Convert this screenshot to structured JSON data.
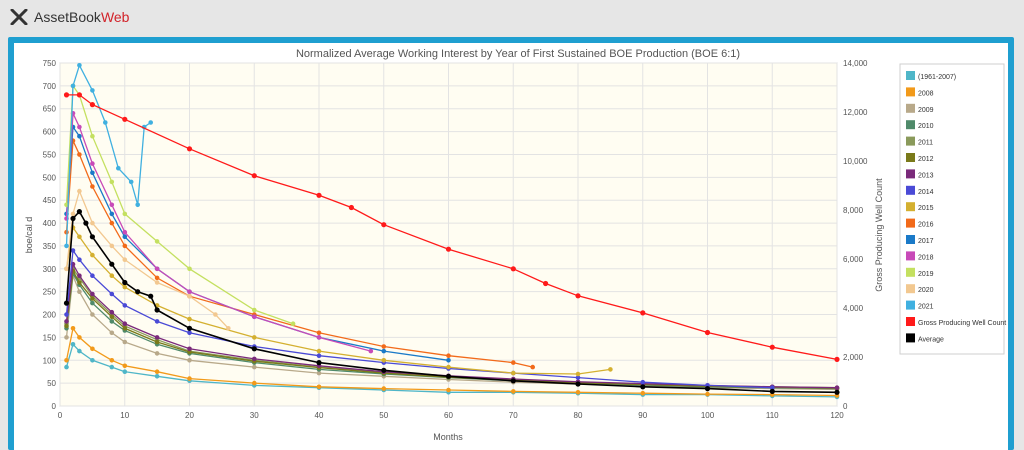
{
  "app": {
    "name_part1": "AssetBook",
    "name_part2": "Web",
    "accent_color": "#d2232a",
    "frame_color": "#1f9fd0",
    "logo_icon": "x-logo-icon"
  },
  "chart_data": {
    "type": "line",
    "title": "Normalized Average Working Interest by Year of First Sustained BOE Production (BOE 6:1)",
    "xlabel": "Months",
    "ylabel": "boe/cal d",
    "y2label": "Gross Producing Well Count",
    "xlim": [
      0,
      120
    ],
    "ylim": [
      0,
      750
    ],
    "y2lim": [
      0,
      14000
    ],
    "xticks": [
      0,
      10,
      20,
      30,
      40,
      50,
      60,
      70,
      80,
      90,
      100,
      110,
      120
    ],
    "yticks": [
      0,
      50,
      100,
      150,
      200,
      250,
      300,
      350,
      400,
      450,
      500,
      550,
      600,
      650,
      700,
      750
    ],
    "y2ticks": [
      "0",
      "2,000",
      "4,000",
      "6,000",
      "8,000",
      "10,000",
      "12,000",
      "14,000"
    ],
    "grid": true,
    "legend_position": "right",
    "series": [
      {
        "name": "(1961-2007)",
        "color": "#4fb6c8",
        "x": [
          1,
          2,
          3,
          5,
          8,
          10,
          15,
          20,
          30,
          40,
          50,
          60,
          70,
          80,
          90,
          100,
          110,
          120
        ],
        "values": [
          85,
          135,
          120,
          100,
          85,
          75,
          65,
          55,
          45,
          40,
          35,
          30,
          30,
          28,
          25,
          25,
          22,
          20
        ]
      },
      {
        "name": "2008",
        "color": "#f29a1a",
        "x": [
          1,
          2,
          3,
          5,
          8,
          10,
          15,
          20,
          30,
          40,
          50,
          60,
          70,
          80,
          90,
          100,
          110,
          120
        ],
        "values": [
          100,
          170,
          150,
          125,
          100,
          88,
          75,
          60,
          50,
          42,
          38,
          35,
          32,
          30,
          28,
          26,
          25,
          23
        ]
      },
      {
        "name": "2009",
        "color": "#b8a98a",
        "x": [
          1,
          2,
          3,
          5,
          8,
          10,
          15,
          20,
          30,
          40,
          50,
          60,
          70,
          80,
          90,
          100,
          110,
          120
        ],
        "values": [
          150,
          285,
          250,
          200,
          160,
          140,
          115,
          100,
          85,
          72,
          65,
          58,
          52,
          48,
          44,
          40,
          38,
          36
        ]
      },
      {
        "name": "2010",
        "color": "#4f8a6a",
        "x": [
          1,
          2,
          3,
          5,
          8,
          10,
          15,
          20,
          30,
          40,
          50,
          60,
          70,
          80,
          90,
          100,
          110,
          120
        ],
        "values": [
          170,
          290,
          265,
          225,
          185,
          165,
          135,
          115,
          95,
          80,
          70,
          62,
          55,
          50,
          46,
          42,
          40,
          38
        ]
      },
      {
        "name": "2011",
        "color": "#8a9a5b",
        "x": [
          1,
          2,
          3,
          5,
          8,
          10,
          15,
          20,
          30,
          40,
          50,
          60,
          70,
          80,
          90,
          100,
          110,
          120
        ],
        "values": [
          180,
          300,
          280,
          240,
          200,
          175,
          145,
          120,
          100,
          85,
          73,
          65,
          58,
          52,
          48,
          44,
          42,
          40
        ]
      },
      {
        "name": "2012",
        "color": "#7a7a1a",
        "x": [
          1,
          2,
          3,
          5,
          8,
          10,
          15,
          20,
          30,
          40,
          50,
          60,
          70,
          80,
          90,
          100,
          110,
          120
        ],
        "values": [
          175,
          295,
          270,
          235,
          195,
          170,
          140,
          118,
          98,
          84,
          72,
          63,
          56,
          51,
          47,
          43,
          41,
          39
        ]
      },
      {
        "name": "2013",
        "color": "#7a2a7a",
        "x": [
          1,
          2,
          3,
          5,
          8,
          10,
          15,
          20,
          30,
          40,
          50,
          60,
          70,
          80,
          90,
          100,
          110,
          120
        ],
        "values": [
          185,
          310,
          285,
          245,
          205,
          180,
          150,
          125,
          103,
          88,
          75,
          66,
          59,
          53,
          49,
          45,
          42,
          40
        ]
      },
      {
        "name": "2014",
        "color": "#4a4ad6",
        "x": [
          1,
          2,
          3,
          5,
          8,
          10,
          15,
          20,
          30,
          40,
          50,
          60,
          70,
          80,
          90,
          100,
          110
        ],
        "values": [
          200,
          340,
          320,
          285,
          245,
          220,
          185,
          160,
          130,
          110,
          95,
          82,
          72,
          62,
          52,
          45,
          40
        ]
      },
      {
        "name": "2015",
        "color": "#d4b030",
        "x": [
          1,
          2,
          3,
          5,
          8,
          10,
          15,
          20,
          30,
          40,
          50,
          60,
          70,
          80,
          85
        ],
        "values": [
          300,
          390,
          370,
          330,
          285,
          260,
          220,
          190,
          150,
          120,
          100,
          85,
          72,
          70,
          80
        ]
      },
      {
        "name": "2016",
        "color": "#f26a1a",
        "x": [
          1,
          2,
          3,
          5,
          8,
          10,
          15,
          20,
          30,
          40,
          50,
          60,
          70,
          73
        ],
        "values": [
          380,
          580,
          550,
          480,
          400,
          350,
          280,
          240,
          200,
          160,
          130,
          110,
          95,
          85
        ]
      },
      {
        "name": "2017",
        "color": "#1a7ac8",
        "x": [
          1,
          2,
          3,
          5,
          8,
          10,
          15,
          20,
          30,
          40,
          50,
          60
        ],
        "values": [
          420,
          610,
          590,
          510,
          420,
          370,
          300,
          250,
          195,
          150,
          120,
          100
        ]
      },
      {
        "name": "2018",
        "color": "#c84ab8",
        "x": [
          1,
          2,
          3,
          5,
          8,
          10,
          15,
          20,
          30,
          40,
          48
        ],
        "values": [
          410,
          640,
          610,
          530,
          440,
          380,
          300,
          250,
          195,
          150,
          120
        ]
      },
      {
        "name": "2019",
        "color": "#c4e060",
        "x": [
          1,
          2,
          3,
          5,
          8,
          10,
          15,
          20,
          30,
          36
        ],
        "values": [
          440,
          700,
          680,
          590,
          490,
          420,
          360,
          300,
          210,
          180
        ]
      },
      {
        "name": "2020",
        "color": "#f2c890",
        "x": [
          1,
          2,
          3,
          5,
          8,
          10,
          15,
          20,
          24,
          26
        ],
        "values": [
          300,
          420,
          470,
          400,
          350,
          320,
          270,
          240,
          200,
          170
        ]
      },
      {
        "name": "2021",
        "color": "#40b0e0",
        "x": [
          1,
          2,
          3,
          5,
          7,
          9,
          11,
          12,
          13,
          14
        ],
        "values": [
          350,
          700,
          745,
          690,
          620,
          520,
          490,
          440,
          610,
          620
        ]
      },
      {
        "name": "Average",
        "color": "#000000",
        "x": [
          1,
          2,
          3,
          4,
          5,
          8,
          10,
          12,
          14,
          15,
          20,
          30,
          40,
          50,
          60,
          70,
          80,
          90,
          100,
          110,
          120
        ],
        "values": [
          225,
          410,
          425,
          400,
          370,
          310,
          270,
          250,
          240,
          210,
          170,
          125,
          95,
          78,
          65,
          55,
          48,
          42,
          38,
          32,
          30
        ]
      }
    ],
    "secondary_series": {
      "name": "Gross Producing Well Count",
      "color": "#ff1a1a",
      "x": [
        1,
        3,
        5,
        10,
        20,
        30,
        40,
        45,
        50,
        60,
        70,
        75,
        80,
        90,
        100,
        110,
        120
      ],
      "values": [
        12700,
        12700,
        12300,
        11700,
        10500,
        9400,
        8600,
        8100,
        7400,
        6400,
        5600,
        5000,
        4500,
        3800,
        3000,
        2400,
        1900
      ]
    }
  }
}
